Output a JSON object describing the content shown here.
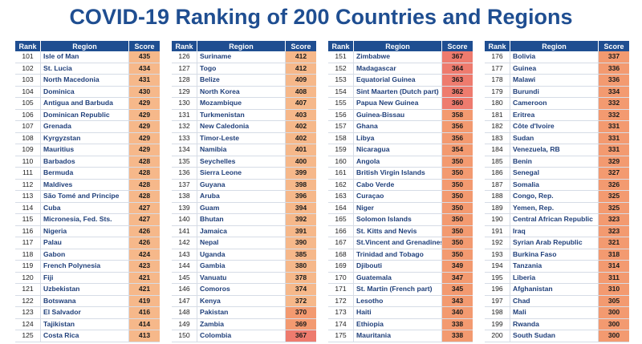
{
  "title": "COVID-19 Ranking of 200 Countries and Regions",
  "headers": {
    "rank": "Rank",
    "region": "Region",
    "score": "Score"
  },
  "colors": {
    "header_bg": "#1f4e91",
    "score_high": "#f6b88a",
    "score_mid": "#f39a70",
    "score_low": "#ee7b6e"
  },
  "chart_data": {
    "type": "table",
    "title": "COVID-19 Ranking of 200 Countries and Regions",
    "columns": [
      "Rank",
      "Region",
      "Score"
    ],
    "tables": [
      [
        [
          "101",
          "Isle of Man",
          "435"
        ],
        [
          "102",
          "St. Lucia",
          "434"
        ],
        [
          "103",
          "North Macedonia",
          "431"
        ],
        [
          "104",
          "Dominica",
          "430"
        ],
        [
          "105",
          "Antigua and Barbuda",
          "429"
        ],
        [
          "106",
          "Dominican Republic",
          "429"
        ],
        [
          "107",
          "Grenada",
          "429"
        ],
        [
          "108",
          "Kyrgyzstan",
          "429"
        ],
        [
          "109",
          "Mauritius",
          "429"
        ],
        [
          "110",
          "Barbados",
          "428"
        ],
        [
          "111",
          "Bermuda",
          "428"
        ],
        [
          "112",
          "Maldives",
          "428"
        ],
        [
          "113",
          "São Tomé and Principe",
          "428"
        ],
        [
          "114",
          "Cuba",
          "427"
        ],
        [
          "115",
          "Micronesia, Fed. Sts.",
          "427"
        ],
        [
          "116",
          "Nigeria",
          "426"
        ],
        [
          "117",
          "Palau",
          "426"
        ],
        [
          "118",
          "Gabon",
          "424"
        ],
        [
          "119",
          "French Polynesia",
          "423"
        ],
        [
          "120",
          "Fiji",
          "421"
        ],
        [
          "121",
          "Uzbekistan",
          "421"
        ],
        [
          "122",
          "Botswana",
          "419"
        ],
        [
          "123",
          "El Salvador",
          "416"
        ],
        [
          "124",
          "Tajikistan",
          "414"
        ],
        [
          "125",
          "Costa Rica",
          "413"
        ]
      ],
      [
        [
          "126",
          "Suriname",
          "412"
        ],
        [
          "127",
          "Togo",
          "412"
        ],
        [
          "128",
          "Belize",
          "409"
        ],
        [
          "129",
          "North Korea",
          "408"
        ],
        [
          "130",
          "Mozambique",
          "407"
        ],
        [
          "131",
          "Turkmenistan",
          "403"
        ],
        [
          "132",
          "New Caledonia",
          "402"
        ],
        [
          "133",
          "Timor-Leste",
          "402"
        ],
        [
          "134",
          "Namibia",
          "401"
        ],
        [
          "135",
          "Seychelles",
          "400"
        ],
        [
          "136",
          "Sierra Leone",
          "399"
        ],
        [
          "137",
          "Guyana",
          "398"
        ],
        [
          "138",
          "Aruba",
          "396"
        ],
        [
          "139",
          "Guam",
          "394"
        ],
        [
          "140",
          "Bhutan",
          "392"
        ],
        [
          "141",
          "Jamaica",
          "391"
        ],
        [
          "142",
          "Nepal",
          "390"
        ],
        [
          "143",
          "Uganda",
          "385"
        ],
        [
          "144",
          "Gambia",
          "380"
        ],
        [
          "145",
          "Vanuatu",
          "378"
        ],
        [
          "146",
          "Comoros",
          "374"
        ],
        [
          "147",
          "Kenya",
          "372"
        ],
        [
          "148",
          "Pakistan",
          "370"
        ],
        [
          "149",
          "Zambia",
          "369"
        ],
        [
          "150",
          "Colombia",
          "367"
        ]
      ],
      [
        [
          "151",
          "Zimbabwe",
          "367"
        ],
        [
          "152",
          "Madagascar",
          "364"
        ],
        [
          "153",
          "Equatorial Guinea",
          "363"
        ],
        [
          "154",
          "Sint Maarten (Dutch part)",
          "362"
        ],
        [
          "155",
          "Papua New Guinea",
          "360"
        ],
        [
          "156",
          "Guinea-Bissau",
          "358"
        ],
        [
          "157",
          "Ghana",
          "356"
        ],
        [
          "158",
          "Libya",
          "356"
        ],
        [
          "159",
          "Nicaragua",
          "354"
        ],
        [
          "160",
          "Angola",
          "350"
        ],
        [
          "161",
          "British Virgin Islands",
          "350"
        ],
        [
          "162",
          "Cabo Verde",
          "350"
        ],
        [
          "163",
          "Curaçao",
          "350"
        ],
        [
          "164",
          "Niger",
          "350"
        ],
        [
          "165",
          "Solomon Islands",
          "350"
        ],
        [
          "166",
          "St. Kitts and Nevis",
          "350"
        ],
        [
          "167",
          "St.Vincent and Grenadines",
          "350"
        ],
        [
          "168",
          "Trinidad and Tobago",
          "350"
        ],
        [
          "169",
          "Djibouti",
          "349"
        ],
        [
          "170",
          "Guatemala",
          "347"
        ],
        [
          "171",
          "St. Martin (French part)",
          "345"
        ],
        [
          "172",
          "Lesotho",
          "343"
        ],
        [
          "173",
          "Haiti",
          "340"
        ],
        [
          "174",
          "Ethiopia",
          "338"
        ],
        [
          "175",
          "Mauritania",
          "338"
        ]
      ],
      [
        [
          "176",
          "Bolivia",
          "337"
        ],
        [
          "177",
          "Guinea",
          "336"
        ],
        [
          "178",
          "Malawi",
          "336"
        ],
        [
          "179",
          "Burundi",
          "334"
        ],
        [
          "180",
          "Cameroon",
          "332"
        ],
        [
          "181",
          "Eritrea",
          "332"
        ],
        [
          "182",
          "Côte d'Ivoire",
          "331"
        ],
        [
          "183",
          "Sudan",
          "331"
        ],
        [
          "184",
          "Venezuela, RB",
          "331"
        ],
        [
          "185",
          "Benin",
          "329"
        ],
        [
          "186",
          "Senegal",
          "327"
        ],
        [
          "187",
          "Somalia",
          "326"
        ],
        [
          "188",
          "Congo, Rep.",
          "325"
        ],
        [
          "189",
          "Yemen, Rep.",
          "325"
        ],
        [
          "190",
          "Central African Republic",
          "323"
        ],
        [
          "191",
          "Iraq",
          "323"
        ],
        [
          "192",
          "Syrian Arab Republic",
          "321"
        ],
        [
          "193",
          "Burkina Faso",
          "318"
        ],
        [
          "194",
          "Tanzania",
          "314"
        ],
        [
          "195",
          "Liberia",
          "311"
        ],
        [
          "196",
          "Afghanistan",
          "310"
        ],
        [
          "197",
          "Chad",
          "305"
        ],
        [
          "198",
          "Mali",
          "300"
        ],
        [
          "199",
          "Rwanda",
          "300"
        ],
        [
          "200",
          "South Sudan",
          "300"
        ]
      ]
    ]
  }
}
